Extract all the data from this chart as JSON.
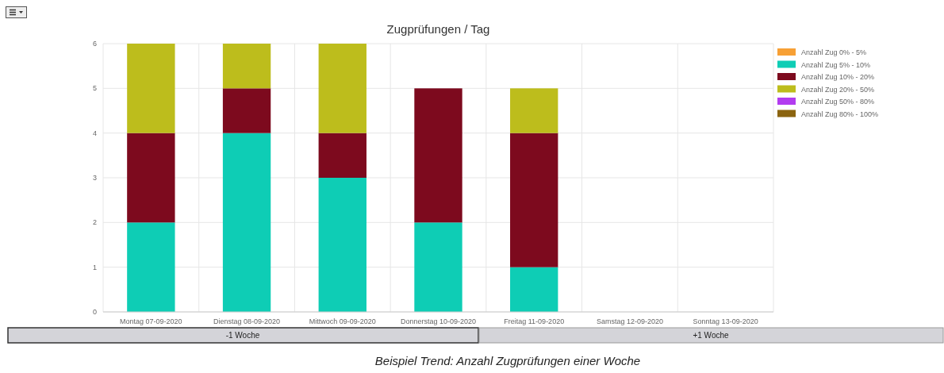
{
  "chart_data": {
    "type": "bar",
    "title": "Zugprüfungen / Tag",
    "stacked": true,
    "grid": true,
    "legend": "right",
    "categories": [
      "Montag 07-09-2020",
      "Dienstag 08-09-2020",
      "Mittwoch 09-09-2020",
      "Donnerstag 10-09-2020",
      "Freitag 11-09-2020",
      "Samstag 12-09-2020",
      "Sonntag 13-09-2020"
    ],
    "ylim": [
      0,
      6
    ],
    "yticks": [
      0,
      1,
      2,
      3,
      4,
      5,
      6
    ],
    "series": [
      {
        "name": "Anzahl Zug 0% - 5%",
        "color": "#f7a035",
        "values": [
          0,
          0,
          0,
          0,
          0,
          0,
          0
        ]
      },
      {
        "name": "Anzahl Zug 5% - 10%",
        "color": "#0ecdb5",
        "values": [
          2,
          4,
          3,
          2,
          1,
          0,
          0
        ]
      },
      {
        "name": "Anzahl Zug 10% - 20%",
        "color": "#7d0a1e",
        "values": [
          2,
          1,
          1,
          3,
          3,
          0,
          0
        ]
      },
      {
        "name": "Anzahl Zug 20% - 50%",
        "color": "#bdbd1c",
        "values": [
          2,
          1,
          2,
          0,
          1,
          0,
          0
        ]
      },
      {
        "name": "Anzahl Zug 50% - 80%",
        "color": "#b23cf0",
        "values": [
          0,
          0,
          0,
          0,
          0,
          0,
          0
        ]
      },
      {
        "name": "Anzahl Zug 80% - 100%",
        "color": "#8b6410",
        "values": [
          0,
          0,
          0,
          0,
          0,
          0,
          0
        ]
      }
    ],
    "annotations": [
      "-1 Woche",
      "+1 Woche",
      "Beispiel Trend: Anzahl Zugprüfungen einer Woche"
    ]
  }
}
